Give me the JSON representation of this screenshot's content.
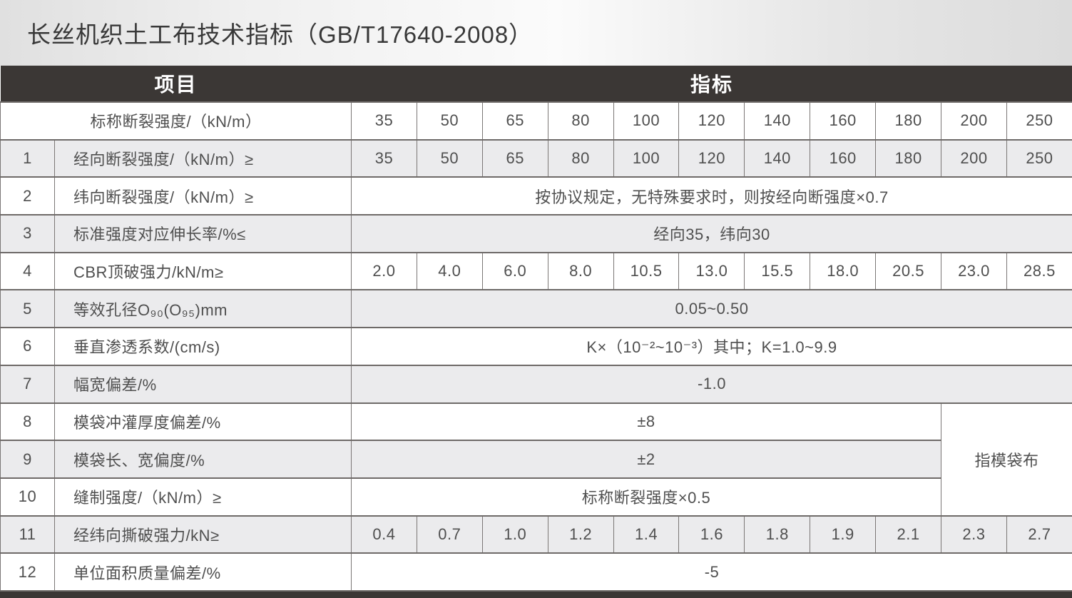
{
  "title": "长丝机织土工布技术指标（GB/T17640-2008）",
  "colors": {
    "header_bg": "#3b3735",
    "row_alt_bg": "#ebebed",
    "row_bg": "#ffffff",
    "border": "#6e6a68",
    "header_text": "#ffffff",
    "body_text": "#4f4f4f"
  },
  "table": {
    "header": {
      "project": "项目",
      "index": "指标"
    },
    "side_note": "指模袋布",
    "rows": [
      {
        "no": "",
        "label": "标称断裂强度/（kN/m）",
        "values": [
          "35",
          "50",
          "65",
          "80",
          "100",
          "120",
          "140",
          "160",
          "180",
          "200",
          "250"
        ]
      },
      {
        "no": "1",
        "label": "经向断裂强度/（kN/m）≥",
        "values": [
          "35",
          "50",
          "65",
          "80",
          "100",
          "120",
          "140",
          "160",
          "180",
          "200",
          "250"
        ]
      },
      {
        "no": "2",
        "label": "纬向断裂强度/（kN/m）≥",
        "value": "按协议规定，无特殊要求时，则按经向断强度×0.7"
      },
      {
        "no": "3",
        "label": "标准强度对应伸长率/%≤",
        "value": "经向35，纬向30"
      },
      {
        "no": "4",
        "label": "CBR顶破强力/kN/m≥",
        "values": [
          "2.0",
          "4.0",
          "6.0",
          "8.0",
          "10.5",
          "13.0",
          "15.5",
          "18.0",
          "20.5",
          "23.0",
          "28.5"
        ]
      },
      {
        "no": "5",
        "label": "等效孔径O₉₀(O₉₅)mm",
        "value": "0.05~0.50"
      },
      {
        "no": "6",
        "label": "垂直渗透系数/(cm/s)",
        "value": "K×（10⁻²~10⁻³）其中；K=1.0~9.9"
      },
      {
        "no": "7",
        "label": "幅宽偏差/%",
        "value": "-1.0"
      },
      {
        "no": "8",
        "label": "模袋冲灌厚度偏差/%",
        "value": "±8"
      },
      {
        "no": "9",
        "label": "模袋长、宽偏度/%",
        "value": "±2"
      },
      {
        "no": "10",
        "label": "缝制强度/（kN/m）≥",
        "value": "标称断裂强度×0.5"
      },
      {
        "no": "11",
        "label": "经纬向撕破强力/kN≥",
        "values": [
          "0.4",
          "0.7",
          "1.0",
          "1.2",
          "1.4",
          "1.6",
          "1.8",
          "1.9",
          "2.1",
          "2.3",
          "2.7"
        ]
      },
      {
        "no": "12",
        "label": "单位面积质量偏差/%",
        "value": "-5"
      }
    ]
  }
}
